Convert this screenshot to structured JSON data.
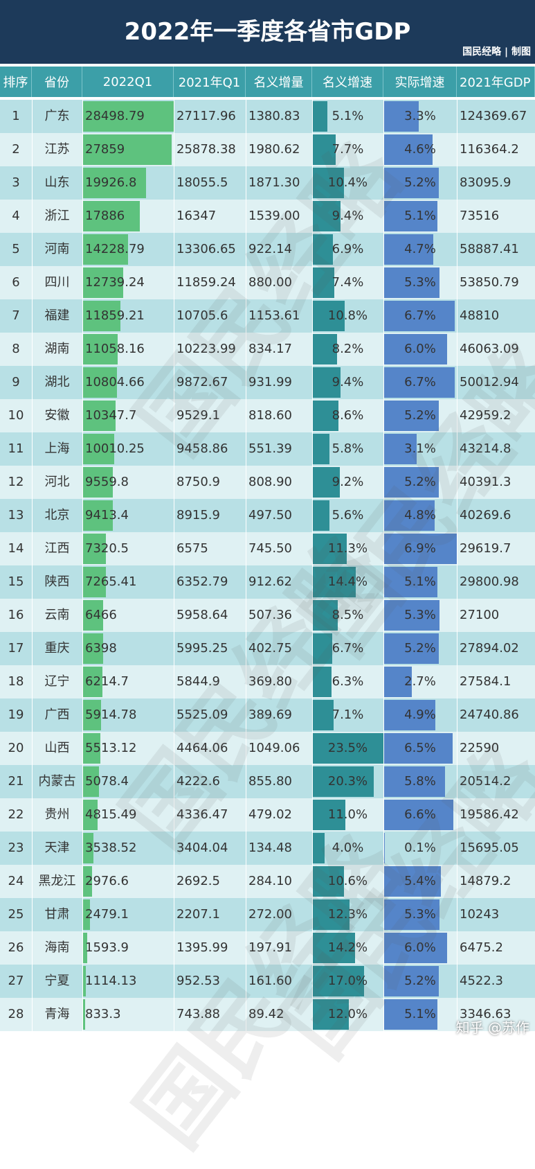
{
  "title": "2022年一季度各省市GDP",
  "credit": "国民经略 | 制图",
  "watermark": "国民经略",
  "footer": "知乎 @苏作",
  "colors": {
    "header_bg": "#1d3a5a",
    "column_header_bg": "#3c9fa8",
    "row_dark": "#b8e0e5",
    "row_light": "#dff1f3",
    "bar_gdp": "#5ec27e",
    "bar_nominal": "#2e8f96",
    "bar_real": "#5585c9"
  },
  "chart_data": {
    "type": "table",
    "title": "2022年一季度各省市GDP",
    "columns": [
      "排序",
      "省份",
      "2022Q1",
      "2021年Q1",
      "名义增量",
      "名义增速",
      "实际增速",
      "2021年GDP"
    ],
    "bar_columns": {
      "2022Q1": {
        "max": 28498.79
      },
      "名义增速": {
        "max": 23.5
      },
      "实际增速": {
        "max": 6.9
      }
    },
    "rows": [
      {
        "rank": "1",
        "province": "广东",
        "q1_2022": "28498.79",
        "q1_2021": "27117.96",
        "nominal_increase": "1380.83",
        "nominal_growth": "5.1%",
        "real_growth": "3.3%",
        "gdp_2021": "124369.67"
      },
      {
        "rank": "2",
        "province": "江苏",
        "q1_2022": "27859",
        "q1_2021": "25878.38",
        "nominal_increase": "1980.62",
        "nominal_growth": "7.7%",
        "real_growth": "4.6%",
        "gdp_2021": "116364.2"
      },
      {
        "rank": "3",
        "province": "山东",
        "q1_2022": "19926.8",
        "q1_2021": "18055.5",
        "nominal_increase": "1871.30",
        "nominal_growth": "10.4%",
        "real_growth": "5.2%",
        "gdp_2021": "83095.9"
      },
      {
        "rank": "4",
        "province": "浙江",
        "q1_2022": "17886",
        "q1_2021": "16347",
        "nominal_increase": "1539.00",
        "nominal_growth": "9.4%",
        "real_growth": "5.1%",
        "gdp_2021": "73516"
      },
      {
        "rank": "5",
        "province": "河南",
        "q1_2022": "14228.79",
        "q1_2021": "13306.65",
        "nominal_increase": "922.14",
        "nominal_growth": "6.9%",
        "real_growth": "4.7%",
        "gdp_2021": "58887.41"
      },
      {
        "rank": "6",
        "province": "四川",
        "q1_2022": "12739.24",
        "q1_2021": "11859.24",
        "nominal_increase": "880.00",
        "nominal_growth": "7.4%",
        "real_growth": "5.3%",
        "gdp_2021": "53850.79"
      },
      {
        "rank": "7",
        "province": "福建",
        "q1_2022": "11859.21",
        "q1_2021": "10705.6",
        "nominal_increase": "1153.61",
        "nominal_growth": "10.8%",
        "real_growth": "6.7%",
        "gdp_2021": "48810"
      },
      {
        "rank": "8",
        "province": "湖南",
        "q1_2022": "11058.16",
        "q1_2021": "10223.99",
        "nominal_increase": "834.17",
        "nominal_growth": "8.2%",
        "real_growth": "6.0%",
        "gdp_2021": "46063.09"
      },
      {
        "rank": "9",
        "province": "湖北",
        "q1_2022": "10804.66",
        "q1_2021": "9872.67",
        "nominal_increase": "931.99",
        "nominal_growth": "9.4%",
        "real_growth": "6.7%",
        "gdp_2021": "50012.94"
      },
      {
        "rank": "10",
        "province": "安徽",
        "q1_2022": "10347.7",
        "q1_2021": "9529.1",
        "nominal_increase": "818.60",
        "nominal_growth": "8.6%",
        "real_growth": "5.2%",
        "gdp_2021": "42959.2"
      },
      {
        "rank": "11",
        "province": "上海",
        "q1_2022": "10010.25",
        "q1_2021": "9458.86",
        "nominal_increase": "551.39",
        "nominal_growth": "5.8%",
        "real_growth": "3.1%",
        "gdp_2021": "43214.8"
      },
      {
        "rank": "12",
        "province": "河北",
        "q1_2022": "9559.8",
        "q1_2021": "8750.9",
        "nominal_increase": "808.90",
        "nominal_growth": "9.2%",
        "real_growth": "5.2%",
        "gdp_2021": "40391.3"
      },
      {
        "rank": "13",
        "province": "北京",
        "q1_2022": "9413.4",
        "q1_2021": "8915.9",
        "nominal_increase": "497.50",
        "nominal_growth": "5.6%",
        "real_growth": "4.8%",
        "gdp_2021": "40269.6"
      },
      {
        "rank": "14",
        "province": "江西",
        "q1_2022": "7320.5",
        "q1_2021": "6575",
        "nominal_increase": "745.50",
        "nominal_growth": "11.3%",
        "real_growth": "6.9%",
        "gdp_2021": "29619.7"
      },
      {
        "rank": "15",
        "province": "陕西",
        "q1_2022": "7265.41",
        "q1_2021": "6352.79",
        "nominal_increase": "912.62",
        "nominal_growth": "14.4%",
        "real_growth": "5.1%",
        "gdp_2021": "29800.98"
      },
      {
        "rank": "16",
        "province": "云南",
        "q1_2022": "6466",
        "q1_2021": "5958.64",
        "nominal_increase": "507.36",
        "nominal_growth": "8.5%",
        "real_growth": "5.3%",
        "gdp_2021": "27100"
      },
      {
        "rank": "17",
        "province": "重庆",
        "q1_2022": "6398",
        "q1_2021": "5995.25",
        "nominal_increase": "402.75",
        "nominal_growth": "6.7%",
        "real_growth": "5.2%",
        "gdp_2021": "27894.02"
      },
      {
        "rank": "18",
        "province": "辽宁",
        "q1_2022": "6214.7",
        "q1_2021": "5844.9",
        "nominal_increase": "369.80",
        "nominal_growth": "6.3%",
        "real_growth": "2.7%",
        "gdp_2021": "27584.1"
      },
      {
        "rank": "19",
        "province": "广西",
        "q1_2022": "5914.78",
        "q1_2021": "5525.09",
        "nominal_increase": "389.69",
        "nominal_growth": "7.1%",
        "real_growth": "4.9%",
        "gdp_2021": "24740.86"
      },
      {
        "rank": "20",
        "province": "山西",
        "q1_2022": "5513.12",
        "q1_2021": "4464.06",
        "nominal_increase": "1049.06",
        "nominal_growth": "23.5%",
        "real_growth": "6.5%",
        "gdp_2021": "22590"
      },
      {
        "rank": "21",
        "province": "内蒙古",
        "q1_2022": "5078.4",
        "q1_2021": "4222.6",
        "nominal_increase": "855.80",
        "nominal_growth": "20.3%",
        "real_growth": "5.8%",
        "gdp_2021": "20514.2"
      },
      {
        "rank": "22",
        "province": "贵州",
        "q1_2022": "4815.49",
        "q1_2021": "4336.47",
        "nominal_increase": "479.02",
        "nominal_growth": "11.0%",
        "real_growth": "6.6%",
        "gdp_2021": "19586.42"
      },
      {
        "rank": "23",
        "province": "天津",
        "q1_2022": "3538.52",
        "q1_2021": "3404.04",
        "nominal_increase": "134.48",
        "nominal_growth": "4.0%",
        "real_growth": "0.1%",
        "gdp_2021": "15695.05"
      },
      {
        "rank": "24",
        "province": "黑龙江",
        "q1_2022": "2976.6",
        "q1_2021": "2692.5",
        "nominal_increase": "284.10",
        "nominal_growth": "10.6%",
        "real_growth": "5.4%",
        "gdp_2021": "14879.2"
      },
      {
        "rank": "25",
        "province": "甘肃",
        "q1_2022": "2479.1",
        "q1_2021": "2207.1",
        "nominal_increase": "272.00",
        "nominal_growth": "12.3%",
        "real_growth": "5.3%",
        "gdp_2021": "10243"
      },
      {
        "rank": "26",
        "province": "海南",
        "q1_2022": "1593.9",
        "q1_2021": "1395.99",
        "nominal_increase": "197.91",
        "nominal_growth": "14.2%",
        "real_growth": "6.0%",
        "gdp_2021": "6475.2"
      },
      {
        "rank": "27",
        "province": "宁夏",
        "q1_2022": "1114.13",
        "q1_2021": "952.53",
        "nominal_increase": "161.60",
        "nominal_growth": "17.0%",
        "real_growth": "5.2%",
        "gdp_2021": "4522.3"
      },
      {
        "rank": "28",
        "province": "青海",
        "q1_2022": "833.3",
        "q1_2021": "743.88",
        "nominal_increase": "89.42",
        "nominal_growth": "12.0%",
        "real_growth": "5.1%",
        "gdp_2021": "3346.63"
      }
    ]
  }
}
